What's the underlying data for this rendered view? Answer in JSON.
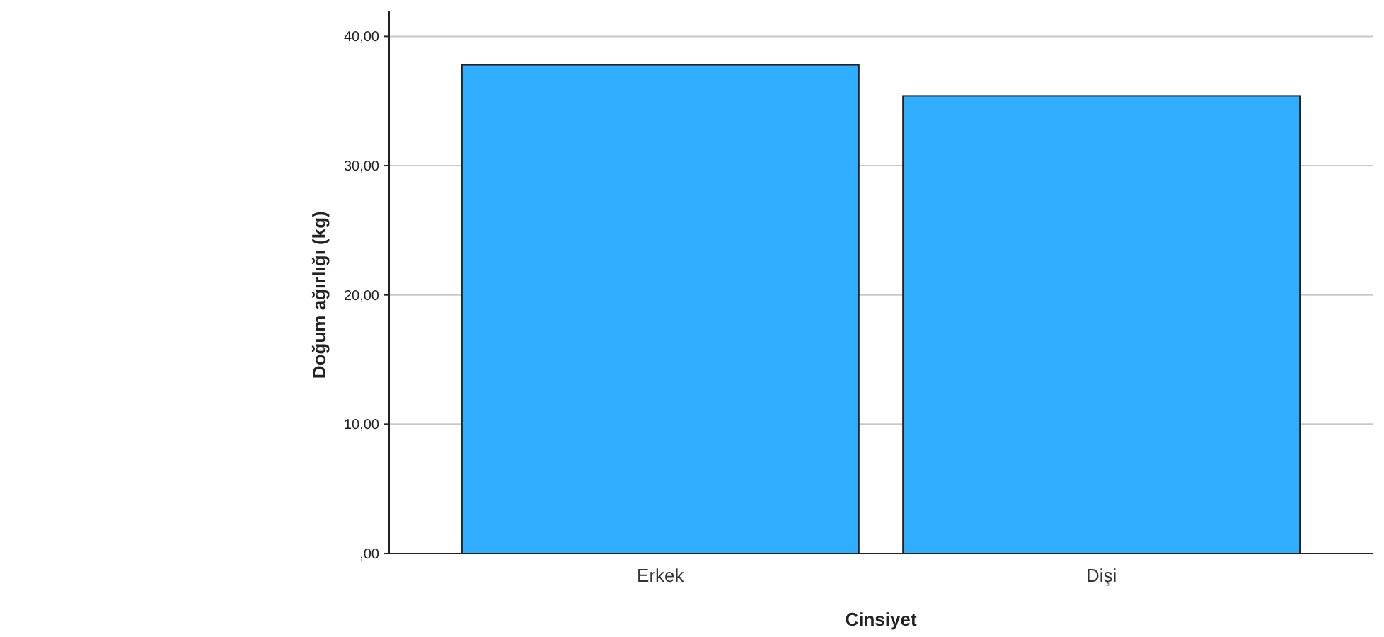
{
  "chart_data": {
    "type": "bar",
    "xlabel": "Cinsiyet",
    "ylabel": "Doğum ağırlığı (kg)",
    "categories": [
      "Erkek",
      "Dişi"
    ],
    "values": [
      37.8,
      35.4
    ],
    "color": "#31adff",
    "ylim": [
      0,
      40
    ],
    "yticks": [
      {
        "value": 0,
        "label": ",00"
      },
      {
        "value": 10,
        "label": "10,00"
      },
      {
        "value": 20,
        "label": "20,00"
      },
      {
        "value": 30,
        "label": "30,00"
      },
      {
        "value": 40,
        "label": "40,00"
      }
    ],
    "grid": "y"
  }
}
